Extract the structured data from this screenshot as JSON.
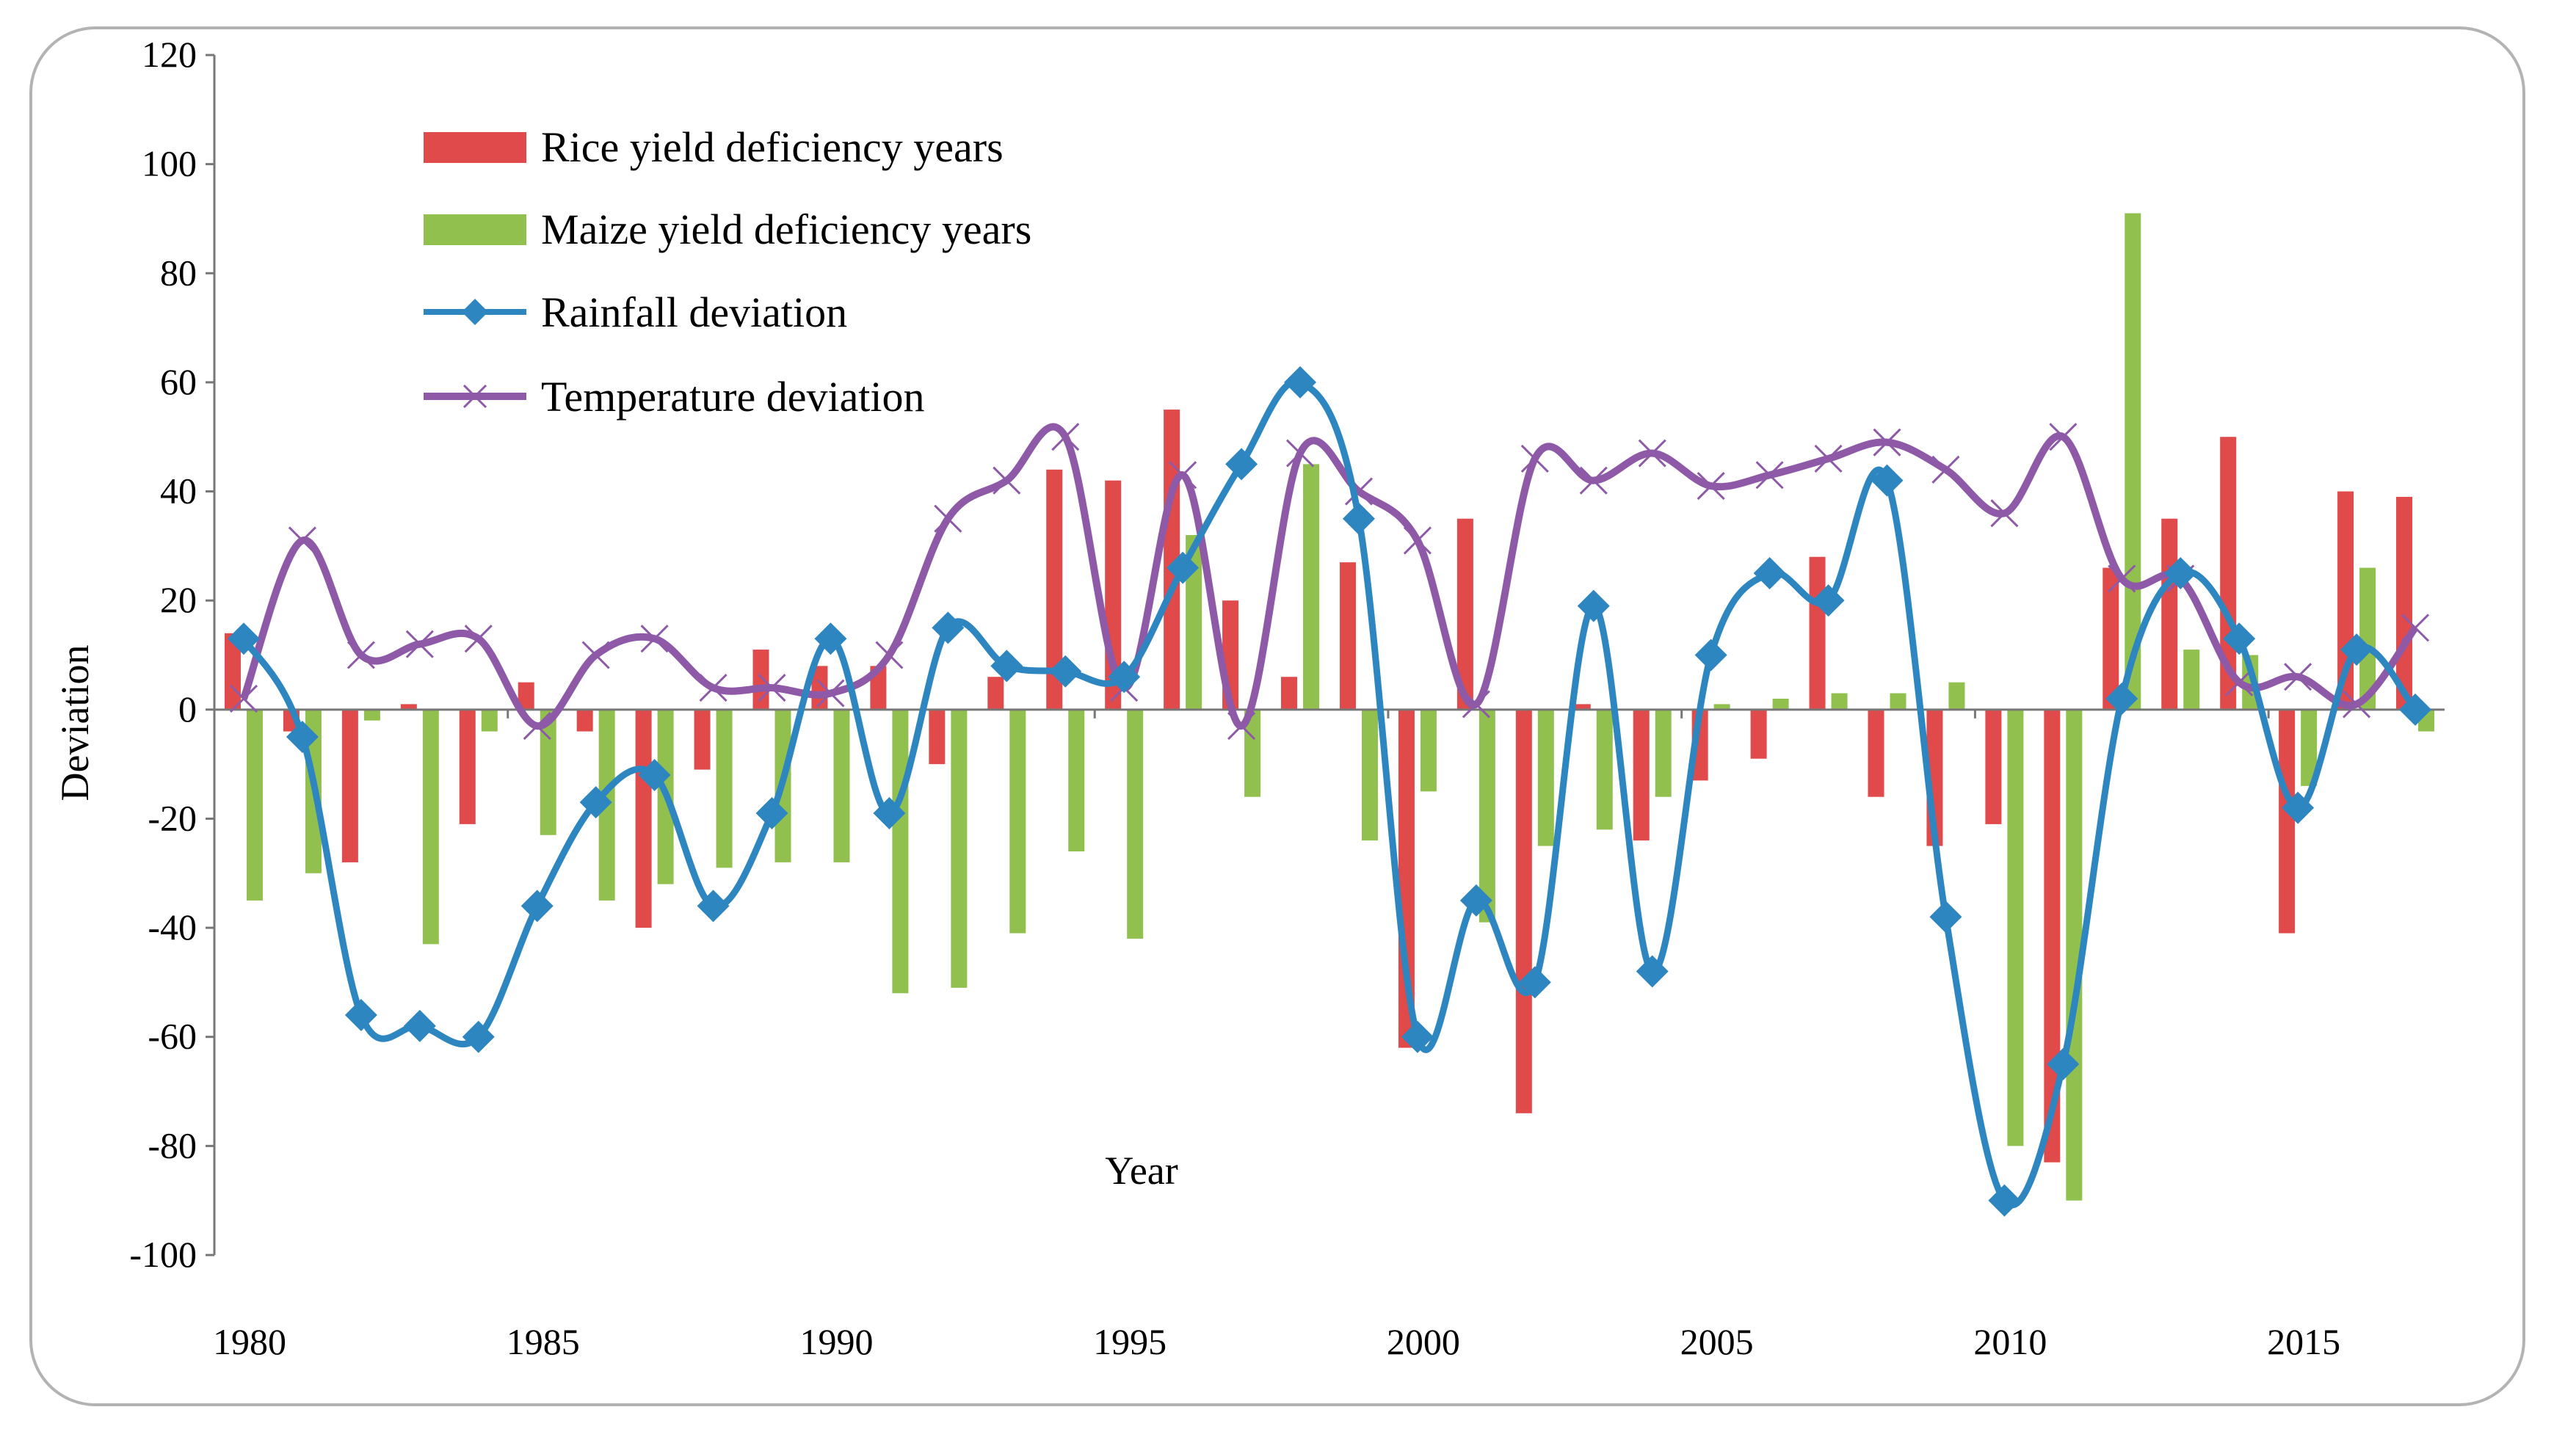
{
  "chart_data": {
    "type": "bar",
    "title": "",
    "xlabel": "Year",
    "ylabel": "Deviation",
    "ylim": [
      -100,
      120
    ],
    "yticks": [
      120,
      100,
      80,
      60,
      40,
      20,
      0,
      -20,
      -40,
      -60,
      -80,
      -100
    ],
    "xticks": [
      1980,
      1985,
      1990,
      1995,
      2000,
      2005,
      2010,
      2015
    ],
    "years": [
      1980,
      1981,
      1982,
      1983,
      1984,
      1985,
      1986,
      1987,
      1988,
      1989,
      1990,
      1991,
      1992,
      1993,
      1994,
      1995,
      1996,
      1997,
      1998,
      1999,
      2000,
      2001,
      2002,
      2003,
      2004,
      2005,
      2006,
      2007,
      2008,
      2009,
      2010,
      2011,
      2012,
      2013,
      2014,
      2015,
      2016,
      2017
    ],
    "legend_position": "top-left",
    "series": [
      {
        "name": "Rice yield deficiency years",
        "kind": "bar",
        "color": "#e04a4a",
        "values": [
          14,
          -4,
          -28,
          1,
          -21,
          5,
          -4,
          -40,
          -11,
          11,
          8,
          8,
          -10,
          6,
          44,
          42,
          55,
          20,
          6,
          27,
          -62,
          35,
          -74,
          1,
          -24,
          -13,
          -9,
          28,
          -16,
          -25,
          -21,
          -83,
          26,
          35,
          50,
          -41,
          40,
          39
        ]
      },
      {
        "name": "Maize yield deficiency years",
        "kind": "bar",
        "color": "#92c04f",
        "values": [
          -35,
          -30,
          -2,
          -43,
          -4,
          -23,
          -35,
          -32,
          -29,
          -28,
          -28,
          -52,
          -51,
          -41,
          -26,
          -42,
          32,
          -16,
          45,
          -24,
          -15,
          -39,
          -25,
          -22,
          -16,
          1,
          2,
          3,
          3,
          5,
          -80,
          -90,
          91,
          11,
          10,
          -14,
          26,
          -4
        ]
      },
      {
        "name": "Rainfall deviation",
        "kind": "line",
        "marker": "diamond",
        "color": "#2e86c1",
        "values": [
          13,
          -5,
          -56,
          -58,
          -60,
          -36,
          -17,
          -12,
          -36,
          -19,
          13,
          -19,
          15,
          8,
          7,
          6,
          26,
          45,
          60,
          35,
          -60,
          -35,
          -50,
          19,
          -48,
          10,
          25,
          20,
          42,
          -38,
          -90,
          -65,
          2,
          25,
          13,
          -18,
          11,
          0
        ]
      },
      {
        "name": "Temperature deviation",
        "kind": "line",
        "marker": "x",
        "color": "#8e5aa8",
        "values": [
          2,
          31,
          10,
          12,
          13,
          -3,
          10,
          13,
          4,
          4,
          3,
          10,
          35,
          42,
          50,
          4,
          43,
          -3,
          47,
          40,
          31,
          1,
          46,
          42,
          47,
          41,
          43,
          46,
          49,
          44,
          36,
          50,
          24,
          24,
          5,
          6,
          1,
          15
        ]
      }
    ]
  }
}
